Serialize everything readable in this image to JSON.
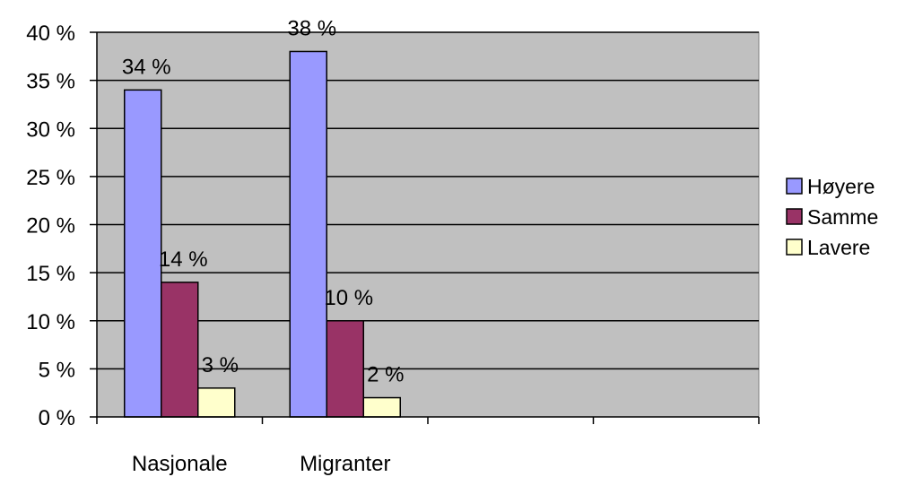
{
  "chart_data": {
    "type": "bar",
    "categories": [
      "Nasjonale",
      "Migranter",
      "",
      ""
    ],
    "series": [
      {
        "name": "Høyere",
        "values": [
          34,
          38,
          null,
          null
        ],
        "labels": [
          "34 %",
          "38 %",
          "",
          ""
        ],
        "color": "#9999ff"
      },
      {
        "name": "Samme",
        "values": [
          14,
          10,
          null,
          null
        ],
        "labels": [
          "14 %",
          "10 %",
          "",
          ""
        ],
        "color": "#993366"
      },
      {
        "name": "Lavere",
        "values": [
          3,
          2,
          null,
          null
        ],
        "labels": [
          "3 %",
          "2 %",
          "",
          ""
        ],
        "color": "#ffffcc"
      }
    ],
    "yticks": [
      "0 %",
      "5 %",
      "10 %",
      "15 %",
      "20 %",
      "25 %",
      "30 %",
      "35 %",
      "40 %"
    ],
    "ylim": [
      0,
      40
    ],
    "ystep": 5,
    "grid": true,
    "plot_background": "#c0c0c0",
    "legend_position": "right",
    "title": "",
    "xlabel": "",
    "ylabel": ""
  }
}
